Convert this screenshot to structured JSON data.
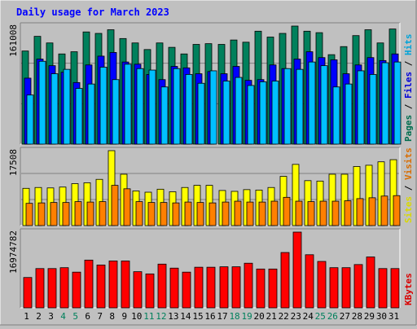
{
  "chart_data": {
    "type": "bar",
    "title": "Daily usage for March 2023",
    "categories": [
      "1",
      "2",
      "3",
      "4",
      "5",
      "6",
      "7",
      "8",
      "9",
      "10",
      "11",
      "12",
      "13",
      "14",
      "15",
      "16",
      "17",
      "18",
      "19",
      "20",
      "21",
      "22",
      "23",
      "24",
      "25",
      "26",
      "27",
      "28",
      "29",
      "30",
      "31"
    ],
    "weekend_categories": [
      "4",
      "5",
      "11",
      "12",
      "18",
      "19",
      "25",
      "26"
    ],
    "panels": [
      {
        "name": "hits-files-pages",
        "max_label": "161008",
        "ymax": 161008,
        "right_labels": [
          "Pages",
          "Files",
          "Hits"
        ],
        "series": [
          {
            "name": "Hits",
            "color": "#00805c",
            "values": [
              127000,
              147000,
              138000,
              123000,
              126000,
              153000,
              151000,
              156000,
              144000,
              138000,
              129000,
              138000,
              132000,
              123000,
              136000,
              137000,
              136000,
              142000,
              139000,
              154000,
              146000,
              151000,
              161000,
              154000,
              152000,
              122000,
              133000,
              148000,
              156000,
              138000,
              157000
            ]
          },
          {
            "name": "Files",
            "color": "#0000ff",
            "values": [
              90000,
              116000,
              107000,
              98000,
              84000,
              108000,
              120000,
              125000,
              112000,
              109000,
              95000,
              88000,
              106000,
              104000,
              96000,
              99000,
              96000,
              106000,
              87000,
              88000,
              108000,
              103000,
              116000,
              126000,
              118000,
              115000,
              96000,
              108000,
              118000,
              114000,
              123000
            ]
          },
          {
            "name": "Pages",
            "color": "#00c0ff",
            "values": [
              67000,
              113000,
              96000,
              102000,
              76000,
              82000,
              105000,
              88000,
              109000,
              103000,
              101000,
              78000,
              103000,
              95000,
              83000,
              100000,
              86000,
              91000,
              80000,
              85000,
              86000,
              103000,
              102000,
              112000,
              107000,
              78000,
              82000,
              100000,
              95000,
              111000,
              112000
            ]
          }
        ]
      },
      {
        "name": "visits-sites",
        "max_label": "17508",
        "ymax": 17508,
        "right_labels": [
          "Sites",
          "Visits"
        ],
        "series": [
          {
            "name": "Visits",
            "color": "#ffff00",
            "values": [
              8700,
              8900,
              8800,
              9000,
              9800,
              10000,
              10800,
              17508,
              12000,
              8100,
              7800,
              8500,
              7900,
              8900,
              9400,
              9400,
              8200,
              8000,
              8400,
              8300,
              8900,
              11500,
              14300,
              10500,
              10400,
              12000,
              12000,
              13800,
              14100,
              14900,
              15400
            ]
          },
          {
            "name": "Sites",
            "color": "#ff8000",
            "values": [
              5200,
              5300,
              5400,
              5400,
              5600,
              5500,
              5600,
              9400,
              8600,
              5600,
              5400,
              5400,
              5300,
              5500,
              5400,
              5300,
              5500,
              5700,
              5500,
              5500,
              5700,
              6600,
              5700,
              5600,
              5700,
              5700,
              5800,
              6300,
              6500,
              6900,
              7000
            ]
          }
        ]
      },
      {
        "name": "kbytes",
        "max_label": "16974782",
        "ymax": 16974782,
        "right_labels": [
          "KBytes"
        ],
        "series": [
          {
            "name": "KBytes",
            "color": "#ff0000",
            "values": [
              6800000,
              8800000,
              8800000,
              9000000,
              8000000,
              10700000,
              9600000,
              10500000,
              10500000,
              8100000,
              7600000,
              9800000,
              8900000,
              8000000,
              9100000,
              9100000,
              9200000,
              9200000,
              10000000,
              8700000,
              8700000,
              12400000,
              16974782,
              11900000,
              10400000,
              9000000,
              9000000,
              9700000,
              11400000,
              8800000,
              8800000
            ]
          }
        ]
      }
    ]
  }
}
